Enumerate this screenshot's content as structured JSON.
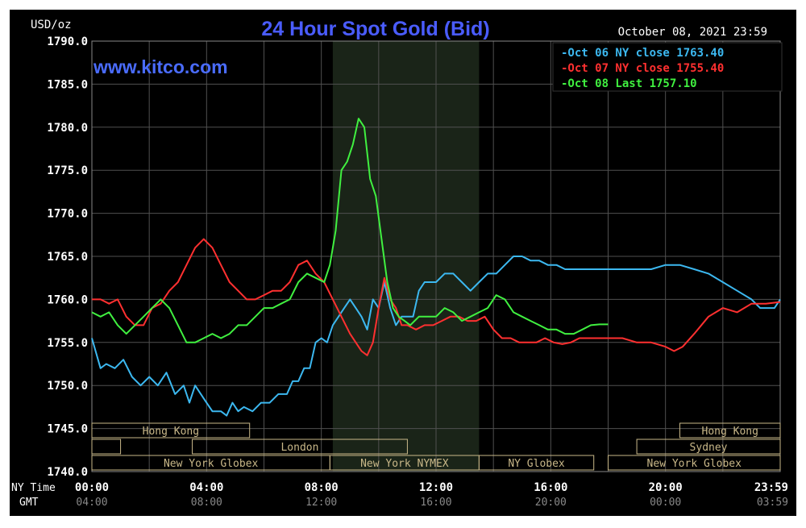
{
  "chart_data": {
    "type": "line",
    "title": "24 Hour Spot Gold (Bid)",
    "date_label": "October 08, 2021 23:59",
    "watermark": "www.kitco.com",
    "ylabel": "USD/oz",
    "ylim": [
      1740,
      1790
    ],
    "y_ticks": [
      "1790.0",
      "1785.0",
      "1780.0",
      "1775.0",
      "1770.0",
      "1765.0",
      "1760.0",
      "1755.0",
      "1750.0",
      "1745.0",
      "1740.0"
    ],
    "xlim": [
      0,
      24
    ],
    "x_row_labels": {
      "ny": "NY Time",
      "gmt": "GMT"
    },
    "x_ticks_ny": [
      "00:00",
      "04:00",
      "08:00",
      "12:00",
      "16:00",
      "20:00",
      "23:59"
    ],
    "x_ticks_gmt": [
      "04:00",
      "08:00",
      "12:00",
      "16:00",
      "20:00",
      "00:00",
      "03:59"
    ],
    "grid": true,
    "legend_position": "top-right",
    "colors": {
      "background": "#000000",
      "grid": "#505050",
      "shade": "#1a2418",
      "axis_text": "#ffffff",
      "title": "#4a5cff",
      "session_bar": "#c9b889"
    },
    "series": [
      {
        "name": "Oct 06 NY close 1763.40",
        "color": "#3cb8f0",
        "x": [
          0,
          0.3,
          0.5,
          0.8,
          1.1,
          1.4,
          1.7,
          2.0,
          2.3,
          2.6,
          2.9,
          3.2,
          3.4,
          3.6,
          3.8,
          4.0,
          4.2,
          4.5,
          4.7,
          4.9,
          5.1,
          5.3,
          5.6,
          5.9,
          6.2,
          6.5,
          6.8,
          7.0,
          7.2,
          7.4,
          7.6,
          7.8,
          8.0,
          8.2,
          8.4,
          8.6,
          8.8,
          9.0,
          9.2,
          9.4,
          9.6,
          9.8,
          10.0,
          10.2,
          10.4,
          10.6,
          10.8,
          11.0,
          11.2,
          11.4,
          11.6,
          11.8,
          12.0,
          12.3,
          12.6,
          12.9,
          13.2,
          13.5,
          13.8,
          14.1,
          14.4,
          14.7,
          15.0,
          15.3,
          15.6,
          15.9,
          16.2,
          16.5,
          16.8,
          17.1,
          17.4,
          17.7,
          18.0,
          18.5,
          19.0,
          19.5,
          20.0,
          20.5,
          21.0,
          21.5,
          22.0,
          22.5,
          23.0,
          23.3,
          23.6,
          23.8,
          24.0
        ],
        "values": [
          1755.5,
          1752,
          1752.5,
          1752,
          1753,
          1751,
          1750,
          1751,
          1750,
          1751.5,
          1749,
          1750,
          1748,
          1750,
          1749,
          1748,
          1747,
          1747,
          1746.5,
          1748,
          1747,
          1747.5,
          1747,
          1748,
          1748,
          1749,
          1749,
          1750.5,
          1750.5,
          1752,
          1752,
          1755,
          1755.5,
          1755,
          1757,
          1758,
          1759,
          1760,
          1759,
          1758,
          1756.5,
          1760,
          1759,
          1762,
          1759,
          1757,
          1758,
          1758,
          1758,
          1761,
          1762,
          1762,
          1762,
          1763,
          1763,
          1762,
          1761,
          1762,
          1763,
          1763,
          1764,
          1765,
          1765,
          1764.5,
          1764.5,
          1764,
          1764,
          1763.5,
          1763.5,
          1763.5,
          1763.5,
          1763.5,
          1763.5,
          1763.5,
          1763.5,
          1763.5,
          1764,
          1764,
          1763.5,
          1763,
          1762,
          1761,
          1760,
          1759,
          1759,
          1759,
          1760
        ]
      },
      {
        "name": "Oct 07 NY close 1755.40",
        "color": "#ff3030",
        "x": [
          0,
          0.3,
          0.6,
          0.9,
          1.2,
          1.5,
          1.8,
          2.1,
          2.4,
          2.7,
          3.0,
          3.3,
          3.6,
          3.9,
          4.2,
          4.5,
          4.8,
          5.1,
          5.4,
          5.7,
          6.0,
          6.3,
          6.6,
          6.9,
          7.2,
          7.5,
          7.8,
          8.1,
          8.4,
          8.7,
          9.0,
          9.2,
          9.4,
          9.6,
          9.8,
          10.0,
          10.2,
          10.4,
          10.6,
          10.8,
          11.0,
          11.3,
          11.6,
          11.9,
          12.2,
          12.5,
          12.8,
          13.1,
          13.4,
          13.7,
          14.0,
          14.3,
          14.6,
          14.9,
          15.2,
          15.5,
          15.8,
          16.1,
          16.4,
          16.7,
          17.0,
          17.5,
          18.0,
          18.5,
          19.0,
          19.5,
          20.0,
          20.3,
          20.6,
          21.0,
          21.5,
          22.0,
          22.5,
          23.0,
          23.5,
          24.0
        ],
        "values": [
          1760,
          1760,
          1759.5,
          1760,
          1758,
          1757,
          1757,
          1759,
          1759.5,
          1761,
          1762,
          1764,
          1766,
          1767,
          1766,
          1764,
          1762,
          1761,
          1760,
          1760,
          1760.5,
          1761,
          1761,
          1762,
          1764,
          1764.5,
          1763,
          1762,
          1760,
          1758,
          1756,
          1755,
          1754,
          1753.5,
          1755,
          1759,
          1762.5,
          1760,
          1759,
          1757,
          1757,
          1756.5,
          1757,
          1757,
          1757.5,
          1758,
          1758,
          1757.5,
          1757.5,
          1758,
          1756.5,
          1755.5,
          1755.5,
          1755,
          1755,
          1755,
          1755.5,
          1755,
          1754.8,
          1755,
          1755.5,
          1755.5,
          1755.5,
          1755.5,
          1755,
          1755,
          1754.5,
          1754,
          1754.5,
          1756,
          1758,
          1759,
          1758.5,
          1759.5,
          1759.5,
          1759.7
        ]
      },
      {
        "name": "Oct 08 Last 1757.10",
        "color": "#40f040",
        "x": [
          0,
          0.3,
          0.6,
          0.9,
          1.2,
          1.5,
          1.8,
          2.1,
          2.4,
          2.7,
          3.0,
          3.3,
          3.6,
          3.9,
          4.2,
          4.5,
          4.8,
          5.1,
          5.4,
          5.7,
          6.0,
          6.3,
          6.6,
          6.9,
          7.2,
          7.5,
          7.8,
          8.1,
          8.3,
          8.5,
          8.7,
          8.9,
          9.1,
          9.3,
          9.5,
          9.7,
          9.9,
          10.1,
          10.3,
          10.5,
          10.7,
          10.9,
          11.1,
          11.4,
          11.7,
          12.0,
          12.3,
          12.6,
          12.9,
          13.2,
          13.5,
          13.8,
          14.1,
          14.4,
          14.7,
          15.0,
          15.3,
          15.6,
          15.9,
          16.2,
          16.5,
          16.8,
          17.1,
          17.4,
          17.7,
          18.0
        ],
        "values": [
          1758.5,
          1758,
          1758.5,
          1757,
          1756,
          1757,
          1758,
          1759,
          1760,
          1759,
          1757,
          1755,
          1755,
          1755.5,
          1756,
          1755.5,
          1756,
          1757,
          1757,
          1758,
          1759,
          1759,
          1759.5,
          1760,
          1762,
          1763,
          1762.5,
          1762,
          1764,
          1768,
          1775,
          1776,
          1778,
          1781,
          1780,
          1774,
          1772,
          1767,
          1762,
          1759,
          1758,
          1757.5,
          1757,
          1758,
          1758,
          1758,
          1759,
          1758.5,
          1757.5,
          1758,
          1758.5,
          1759,
          1760.5,
          1760,
          1758.5,
          1758,
          1757.5,
          1757,
          1756.5,
          1756.5,
          1756,
          1756,
          1756.5,
          1757,
          1757.1,
          1757.1
        ]
      }
    ],
    "shade_band": [
      8.4,
      13.5
    ],
    "market_sessions": [
      {
        "label": "Hong Kong",
        "start": 0,
        "end": 5.5,
        "row": 0
      },
      {
        "label": "",
        "start": 0,
        "end": 1,
        "row": 1
      },
      {
        "label": "London",
        "start": 3.5,
        "end": 11,
        "row": 1
      },
      {
        "label": "New York Globex",
        "start": 0,
        "end": 8.3,
        "row": 2
      },
      {
        "label": "New York NYMEX",
        "start": 8.3,
        "end": 13.5,
        "row": 2
      },
      {
        "label": "NY Globex",
        "start": 13.5,
        "end": 17.5,
        "row": 2
      },
      {
        "label": "Hong Kong",
        "start": 20.5,
        "end": 24,
        "row": 0
      },
      {
        "label": "Sydney",
        "start": 19,
        "end": 24,
        "row": 1
      },
      {
        "label": "New York Globex",
        "start": 18,
        "end": 24,
        "row": 2
      }
    ]
  }
}
